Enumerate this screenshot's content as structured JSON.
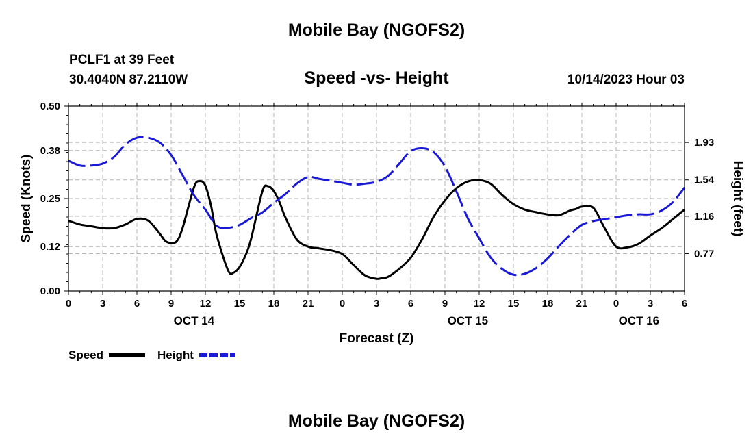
{
  "header": {
    "title": "Mobile Bay (NGOFS2)",
    "station": "PCLF1 at 39 Feet",
    "coordinates": "30.4040N  87.2110W",
    "subtitle": "Speed -vs- Height",
    "timestamp": "10/14/2023 Hour 03"
  },
  "footer": {
    "title": "Mobile Bay (NGOFS2)"
  },
  "colors": {
    "speed": "#000000",
    "height": "#1a1ad6",
    "grid": "#b4b4b4"
  },
  "legend": {
    "speed_label": "Speed",
    "height_label": "Height"
  },
  "chart_data": {
    "type": "line",
    "title": "Speed -vs- Height",
    "xlabel": "Forecast (Z)",
    "ylabel": "Speed (Knots)",
    "y2label": "Height (feet)",
    "x_range_hours": [
      0,
      54
    ],
    "x_tick_labels": [
      "0",
      "3",
      "6",
      "9",
      "12",
      "15",
      "18",
      "21",
      "0",
      "3",
      "6",
      "9",
      "12",
      "15",
      "18",
      "21",
      "0",
      "3",
      "6"
    ],
    "date_labels": [
      {
        "hour": 11,
        "label": "OCT 14"
      },
      {
        "hour": 35,
        "label": "OCT 15"
      },
      {
        "hour": 50,
        "label": "OCT 16"
      }
    ],
    "ylim": [
      0,
      0.5
    ],
    "y_ticks": [
      0.0,
      0.12,
      0.25,
      0.38,
      0.5
    ],
    "y_tick_labels": [
      "0.00",
      "0.12",
      "0.25",
      "0.38",
      "0.50"
    ],
    "y2lim": [
      0.38,
      2.31
    ],
    "y2_ticks": [
      0.77,
      1.16,
      1.54,
      1.93
    ],
    "y2_tick_labels": [
      "0.77",
      "1.16",
      "1.54",
      "1.93"
    ],
    "series": [
      {
        "name": "Speed",
        "axis": "left",
        "x": [
          0,
          1,
          2,
          3,
          4,
          5,
          6,
          7,
          8,
          8.5,
          9,
          9.5,
          10,
          11,
          11.5,
          12,
          12.5,
          13,
          14,
          14.5,
          15,
          15.5,
          16,
          17,
          17.5,
          18,
          18.5,
          19,
          20,
          21,
          22,
          23,
          24,
          25,
          26,
          27,
          27.5,
          28,
          29,
          30,
          31,
          32,
          33,
          34,
          35,
          36,
          37,
          38,
          39,
          40,
          41,
          42,
          43,
          44,
          44.5,
          45,
          46,
          47,
          48,
          49,
          50,
          51,
          52,
          53,
          54
        ],
        "values": [
          0.19,
          0.18,
          0.175,
          0.17,
          0.17,
          0.18,
          0.195,
          0.19,
          0.155,
          0.135,
          0.13,
          0.135,
          0.17,
          0.28,
          0.297,
          0.285,
          0.23,
          0.15,
          0.055,
          0.05,
          0.065,
          0.095,
          0.14,
          0.27,
          0.283,
          0.27,
          0.24,
          0.2,
          0.14,
          0.12,
          0.115,
          0.11,
          0.1,
          0.07,
          0.042,
          0.033,
          0.035,
          0.038,
          0.06,
          0.09,
          0.14,
          0.2,
          0.245,
          0.278,
          0.296,
          0.3,
          0.29,
          0.26,
          0.235,
          0.22,
          0.213,
          0.207,
          0.205,
          0.218,
          0.222,
          0.228,
          0.225,
          0.17,
          0.12,
          0.118,
          0.128,
          0.15,
          0.17,
          0.195,
          0.22
        ]
      },
      {
        "name": "Height",
        "axis": "right",
        "x": [
          0,
          1,
          2,
          3,
          4,
          5,
          6,
          7,
          8,
          9,
          10,
          11,
          12,
          13,
          14,
          15,
          16,
          17,
          18,
          19,
          20,
          21,
          22,
          23,
          24,
          25,
          26,
          27,
          28,
          29,
          30,
          31,
          32,
          33,
          34,
          35,
          36,
          37,
          38,
          39,
          40,
          41,
          42,
          43,
          44,
          45,
          46,
          47,
          48,
          49,
          50,
          51,
          52,
          53,
          54
        ],
        "values": [
          1.74,
          1.69,
          1.69,
          1.71,
          1.78,
          1.91,
          1.98,
          1.98,
          1.93,
          1.8,
          1.59,
          1.38,
          1.23,
          1.06,
          1.04,
          1.07,
          1.14,
          1.2,
          1.3,
          1.39,
          1.5,
          1.57,
          1.55,
          1.53,
          1.51,
          1.49,
          1.5,
          1.52,
          1.58,
          1.71,
          1.84,
          1.87,
          1.83,
          1.68,
          1.42,
          1.14,
          0.93,
          0.73,
          0.61,
          0.55,
          0.56,
          0.62,
          0.72,
          0.85,
          0.97,
          1.07,
          1.11,
          1.13,
          1.15,
          1.17,
          1.18,
          1.18,
          1.22,
          1.31,
          1.46
        ]
      }
    ]
  }
}
